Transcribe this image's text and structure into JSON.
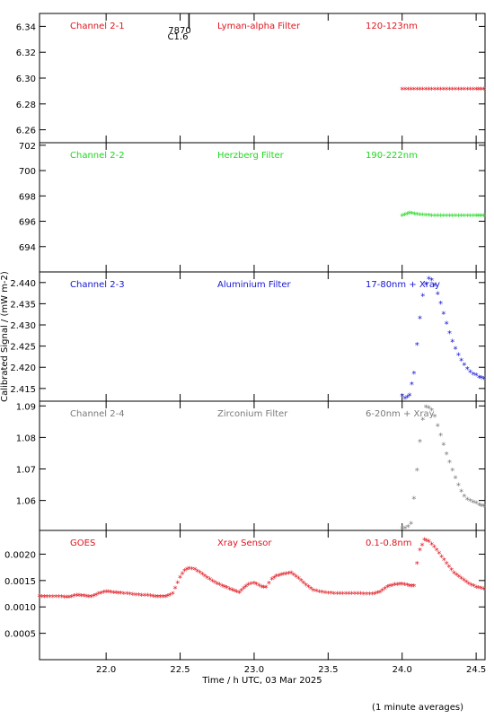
{
  "ylabel": "Calibrated Signal / (mW m-2)",
  "xlabel": "Time / h UTC, 03 Mar 2025",
  "footnote": "(1 minute averages)",
  "flare_marker": {
    "label_top": "7870",
    "label_bottom": "C1.6"
  },
  "colors": {
    "red": "#e0141c",
    "green": "#1ed81e",
    "blue": "#1414d6",
    "grey": "#7a7a7a",
    "axis": "#000000"
  },
  "chart_data": [
    {
      "type": "scatter",
      "panel": 1,
      "channel": "Channel 2-1",
      "filter": "Lyman-alpha Filter",
      "band": "120-123nm",
      "color": "#e0141c",
      "ylim": [
        6.25,
        6.35
      ],
      "yticks": [
        6.26,
        6.28,
        6.3,
        6.32,
        6.34
      ],
      "ytick_labels": [
        "6.26",
        "6.28",
        "6.30",
        "6.32",
        "6.34"
      ],
      "x": [
        24.0,
        24.1,
        24.2,
        24.3,
        24.4,
        24.5,
        24.55
      ],
      "y": [
        6.291,
        6.291,
        6.291,
        6.291,
        6.291,
        6.291,
        6.291
      ]
    },
    {
      "type": "scatter",
      "panel": 2,
      "channel": "Channel 2-2",
      "filter": "Herzberg Filter",
      "band": "190-222nm",
      "color": "#1ed81e",
      "ylim": [
        692,
        702.2
      ],
      "yticks": [
        694,
        696,
        698,
        700,
        702
      ],
      "ytick_labels": [
        "694",
        "696",
        "698",
        "700",
        "702"
      ],
      "x": [
        24.0,
        24.05,
        24.1,
        24.2,
        24.3,
        24.4,
        24.5,
        24.55
      ],
      "y": [
        696.4,
        696.6,
        696.5,
        696.4,
        696.4,
        696.4,
        696.4,
        696.4
      ]
    },
    {
      "type": "scatter",
      "panel": 3,
      "channel": "Channel 2-3",
      "filter": "Aluminium Filter",
      "band": "17-80nm + Xray",
      "color": "#1414d6",
      "ylim": [
        2.412,
        2.4425
      ],
      "yticks": [
        2.415,
        2.42,
        2.425,
        2.43,
        2.435,
        2.44
      ],
      "ytick_labels": [
        "2.415",
        "2.420",
        "2.425",
        "2.430",
        "2.435",
        "2.440"
      ],
      "x": [
        24.0,
        24.02,
        24.05,
        24.08,
        24.1,
        24.12,
        24.14,
        24.16,
        24.18,
        24.2,
        24.22,
        24.24,
        24.26,
        24.28,
        24.3,
        24.32,
        24.34,
        24.36,
        24.38,
        24.4,
        24.42,
        24.44,
        24.46,
        24.48,
        24.5,
        24.52,
        24.55
      ],
      "y": [
        2.4132,
        2.4125,
        2.4133,
        2.4185,
        2.4252,
        2.4315,
        2.4368,
        2.4395,
        2.4408,
        2.4405,
        2.4392,
        2.4372,
        2.435,
        2.4325,
        2.4302,
        2.428,
        2.426,
        2.4243,
        2.4228,
        2.4215,
        2.4205,
        2.4195,
        2.4188,
        2.4183,
        2.418,
        2.4175,
        2.4172
      ]
    },
    {
      "type": "scatter",
      "panel": 4,
      "channel": "Channel 2-4",
      "filter": "Zirconium Filter",
      "band": "6-20nm + Xray",
      "color": "#7a7a7a",
      "ylim": [
        1.0505,
        1.0915
      ],
      "yticks": [
        1.06,
        1.07,
        1.08,
        1.09
      ],
      "ytick_labels": [
        "1.06",
        "1.07",
        "1.08",
        "1.09"
      ],
      "x": [
        24.0,
        24.02,
        24.04,
        24.06,
        24.08,
        24.1,
        24.12,
        24.14,
        24.16,
        24.18,
        24.2,
        24.22,
        24.24,
        24.26,
        24.28,
        24.3,
        24.32,
        24.34,
        24.36,
        24.38,
        24.4,
        24.42,
        24.44,
        24.46,
        24.48,
        24.5,
        24.52,
        24.55
      ],
      "y": [
        1.051,
        1.051,
        1.0515,
        1.0525,
        1.0605,
        1.0695,
        1.0785,
        1.0855,
        1.0895,
        1.0892,
        1.0885,
        1.0865,
        1.0835,
        1.0805,
        1.0775,
        1.0745,
        1.072,
        1.0695,
        1.067,
        1.0648,
        1.0628,
        1.0612,
        1.0602,
        1.0598,
        1.0593,
        1.059,
        1.0585,
        1.058
      ]
    },
    {
      "type": "scatter",
      "panel": 5,
      "channel": "GOES",
      "filter": "Xray Sensor",
      "band": "0.1-0.8nm",
      "color": "#e0141c",
      "ylim": [
        0.0,
        0.00245
      ],
      "yticks": [
        0.0005,
        0.001,
        0.0015,
        0.002
      ],
      "ytick_labels": [
        "0.0005",
        "0.0010",
        "0.0015",
        "0.0020"
      ],
      "x": [
        21.55,
        21.6,
        21.7,
        21.75,
        21.8,
        21.85,
        21.9,
        21.95,
        22.0,
        22.05,
        22.1,
        22.2,
        22.3,
        22.35,
        22.4,
        22.45,
        22.5,
        22.53,
        22.56,
        22.6,
        22.65,
        22.7,
        22.75,
        22.8,
        22.85,
        22.9,
        22.93,
        22.96,
        23.0,
        23.05,
        23.08,
        23.12,
        23.15,
        23.2,
        23.25,
        23.3,
        23.35,
        23.4,
        23.5,
        23.6,
        23.7,
        23.8,
        23.85,
        23.9,
        23.95,
        24.0,
        24.05,
        24.08,
        24.1,
        24.12,
        24.15,
        24.18,
        24.2,
        24.25,
        24.3,
        24.35,
        24.4,
        24.45,
        24.5,
        24.55
      ],
      "y": [
        0.00119,
        0.00118,
        0.00118,
        0.00117,
        0.00121,
        0.0012,
        0.00118,
        0.00124,
        0.00128,
        0.00126,
        0.00125,
        0.00122,
        0.0012,
        0.00118,
        0.00118,
        0.00124,
        0.00155,
        0.00168,
        0.00172,
        0.0017,
        0.00161,
        0.00151,
        0.00143,
        0.00137,
        0.00131,
        0.00126,
        0.00134,
        0.00141,
        0.00144,
        0.00137,
        0.00136,
        0.00151,
        0.00157,
        0.00161,
        0.00163,
        0.00153,
        0.0014,
        0.0013,
        0.00125,
        0.00124,
        0.00124,
        0.00123,
        0.00127,
        0.00137,
        0.00141,
        0.00142,
        0.00139,
        0.00139,
        0.00181,
        0.00207,
        0.00226,
        0.00223,
        0.00218,
        0.00201,
        0.00181,
        0.00163,
        0.00153,
        0.00143,
        0.00136,
        0.00133
      ]
    }
  ],
  "x_axis": {
    "xlim": [
      21.55,
      24.56
    ],
    "xticks": [
      22.0,
      22.5,
      23.0,
      23.5,
      24.0,
      24.5
    ],
    "xtick_labels": [
      "22.0",
      "22.5",
      "23.0",
      "23.5",
      "24.0",
      "24.5"
    ],
    "flare_x": 22.56
  }
}
